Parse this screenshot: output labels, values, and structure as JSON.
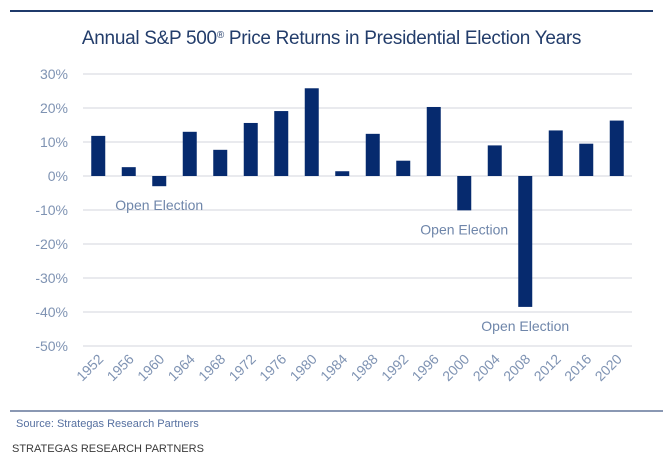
{
  "header": {
    "title": "Annual S&P 500",
    "title_mark": "®",
    "title_rest": " Price Returns in Presidential Election Years"
  },
  "footer": {
    "source": "Source: Strategas Research Partners",
    "caption": "STRATEGAS RESEARCH PARTNERS"
  },
  "colors": {
    "bar": "#062a6e",
    "grid": "#e2e4e8",
    "axis_text": "#7f93b3",
    "title": "#233d6b"
  },
  "chart_data": {
    "type": "bar",
    "title": "Annual S&P 500® Price Returns in Presidential Election Years",
    "xlabel": "",
    "ylabel": "",
    "categories": [
      "1952",
      "1956",
      "1960",
      "1964",
      "1968",
      "1972",
      "1976",
      "1980",
      "1984",
      "1988",
      "1992",
      "1996",
      "2000",
      "2004",
      "2008",
      "2012",
      "2016",
      "2020"
    ],
    "values": [
      11.8,
      2.6,
      -3.0,
      13.0,
      7.7,
      15.6,
      19.1,
      25.8,
      1.4,
      12.4,
      4.5,
      20.3,
      -10.1,
      9.0,
      -38.5,
      13.4,
      9.5,
      16.3
    ],
    "unit": "%",
    "ylim": [
      -50,
      30
    ],
    "yticks": [
      30,
      20,
      10,
      0,
      -10,
      -20,
      -30,
      -40,
      -50
    ],
    "ytick_labels": [
      "30%",
      "20%",
      "10%",
      "0%",
      "-10%",
      "-20%",
      "-30%",
      "-40%",
      "-50%"
    ],
    "grid": true,
    "legend": "none",
    "annotations": [
      {
        "text": "Open Election",
        "category": "1960"
      },
      {
        "text": "Open Election",
        "category": "2000"
      },
      {
        "text": "Open Election",
        "category": "2008"
      }
    ]
  }
}
